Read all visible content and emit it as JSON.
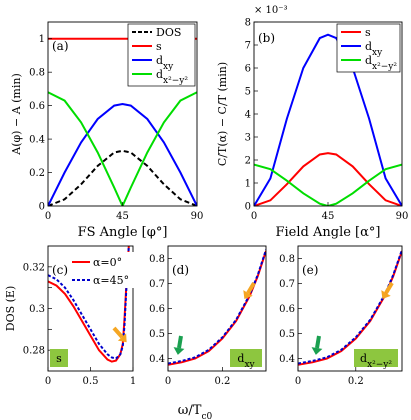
{
  "figure": {
    "panel_labels": [
      "(a)",
      "(b)",
      "(c)",
      "(d)",
      "(e)"
    ],
    "exponent_label": "× 10⁻³",
    "bottom_xlabel": "ω/T",
    "bottom_xlabel_sub": "c0"
  },
  "colors": {
    "s": "#ff0000",
    "dxy": "#0000ff",
    "dx2y2": "#00dd00",
    "dos": "#000000",
    "alpha0": "#ff0000",
    "alpha45": "#0000cc",
    "arrow_orange": "#f5a623",
    "arrow_green": "#1aa050",
    "box_fill": "#8dc63f"
  },
  "chart_data": [
    {
      "id": "a",
      "type": "line",
      "xlabel": "FS Angle [φ°]",
      "ylabel": "A(φ) − A (min)",
      "xlim": [
        0,
        90
      ],
      "ylim": [
        0,
        1.1
      ],
      "xticks": [
        0,
        45,
        90
      ],
      "yticks": [
        0,
        0.2,
        0.4,
        0.6,
        0.8,
        1
      ],
      "legend": [
        "DOS",
        "s",
        "d_xy",
        "d_x²−y²"
      ],
      "legend_position": "top-right",
      "series": [
        {
          "name": "DOS",
          "color": "#000000",
          "dashed": true,
          "x": [
            0,
            10,
            20,
            30,
            40,
            45,
            50,
            60,
            70,
            80,
            90
          ],
          "y": [
            0,
            0.04,
            0.13,
            0.24,
            0.32,
            0.33,
            0.32,
            0.24,
            0.13,
            0.04,
            0
          ]
        },
        {
          "name": "s",
          "color": "#ff0000",
          "x": [
            0,
            90
          ],
          "y": [
            1,
            1
          ]
        },
        {
          "name": "d_xy",
          "color": "#0000ff",
          "x": [
            0,
            10,
            20,
            30,
            40,
            45,
            50,
            60,
            70,
            80,
            90
          ],
          "y": [
            0,
            0.2,
            0.38,
            0.52,
            0.6,
            0.61,
            0.6,
            0.52,
            0.38,
            0.2,
            0
          ]
        },
        {
          "name": "d_x²−y²",
          "color": "#00dd00",
          "x": [
            0,
            10,
            20,
            30,
            40,
            45,
            50,
            60,
            70,
            80,
            90
          ],
          "y": [
            0.68,
            0.63,
            0.5,
            0.32,
            0.11,
            0,
            0.11,
            0.32,
            0.5,
            0.63,
            0.68
          ]
        }
      ]
    },
    {
      "id": "b",
      "type": "line",
      "xlabel": "Field Angle [α°]",
      "ylabel": "C/T(α) − C/T (min)",
      "xlim": [
        0,
        90
      ],
      "ylim": [
        0,
        8
      ],
      "xticks": [
        0,
        45,
        90
      ],
      "yticks": [
        0,
        1,
        2,
        3,
        4,
        5,
        6,
        7,
        8
      ],
      "legend": [
        "s",
        "d_xy",
        "d_x²−y²"
      ],
      "legend_position": "top-right",
      "series": [
        {
          "name": "s",
          "color": "#ff0000",
          "x": [
            0,
            10,
            20,
            30,
            40,
            45,
            50,
            60,
            70,
            80,
            90
          ],
          "y": [
            0,
            0.25,
            0.95,
            1.72,
            2.24,
            2.3,
            2.24,
            1.72,
            0.95,
            0.25,
            0
          ]
        },
        {
          "name": "d_xy",
          "color": "#0000ff",
          "x": [
            0,
            10,
            20,
            30,
            40,
            45,
            50,
            60,
            70,
            80,
            90
          ],
          "y": [
            0,
            1.2,
            3.8,
            6.0,
            7.3,
            7.45,
            7.3,
            6.0,
            3.8,
            1.2,
            0
          ]
        },
        {
          "name": "d_x²−y²",
          "color": "#00dd00",
          "x": [
            0,
            10,
            20,
            30,
            40,
            45,
            50,
            60,
            70,
            80,
            90
          ],
          "y": [
            1.8,
            1.6,
            1.1,
            0.55,
            0.1,
            0,
            0.1,
            0.55,
            1.1,
            1.6,
            1.8
          ]
        }
      ]
    },
    {
      "id": "c",
      "type": "line",
      "ylabel": "DOS (E)",
      "xlim": [
        0,
        1
      ],
      "ylim": [
        0.27,
        0.33
      ],
      "xticks": [
        0,
        0.5,
        1
      ],
      "yticks": [
        0.28,
        0.29,
        0.3,
        0.31,
        0.32
      ],
      "yticklabels": [
        "0.28",
        "",
        "0.3",
        "",
        "0.32"
      ],
      "legend": [
        "α=0°",
        "α=45°"
      ],
      "legend_position": "top-right",
      "box_label": "s",
      "series": [
        {
          "name": "α=0°",
          "color": "#ff0000",
          "x": [
            0,
            0.1,
            0.2,
            0.3,
            0.4,
            0.5,
            0.6,
            0.7,
            0.75,
            0.8,
            0.85,
            0.88,
            0.9,
            0.92,
            0.95
          ],
          "y": [
            0.313,
            0.311,
            0.307,
            0.301,
            0.294,
            0.287,
            0.28,
            0.2755,
            0.2745,
            0.275,
            0.278,
            0.283,
            0.295,
            0.31,
            0.33
          ]
        },
        {
          "name": "α=45°",
          "color": "#0000cc",
          "dashed": true,
          "x": [
            0,
            0.1,
            0.2,
            0.3,
            0.4,
            0.5,
            0.6,
            0.7,
            0.75,
            0.8,
            0.85,
            0.88,
            0.9,
            0.92,
            0.95
          ],
          "y": [
            0.316,
            0.314,
            0.31,
            0.304,
            0.297,
            0.29,
            0.283,
            0.278,
            0.2765,
            0.276,
            0.278,
            0.282,
            0.292,
            0.308,
            0.33
          ]
        }
      ]
    },
    {
      "id": "d",
      "type": "line",
      "xlim": [
        0,
        0.36
      ],
      "ylim": [
        0.35,
        0.85
      ],
      "xticks": [
        0,
        0.2
      ],
      "yticks": [
        0.4,
        0.5,
        0.6,
        0.7,
        0.8
      ],
      "box_label": "d_xy",
      "series": [
        {
          "name": "α=0°",
          "color": "#ff0000",
          "x": [
            0,
            0.05,
            0.1,
            0.15,
            0.2,
            0.25,
            0.3,
            0.33,
            0.36
          ],
          "y": [
            0.375,
            0.385,
            0.4,
            0.43,
            0.48,
            0.55,
            0.65,
            0.73,
            0.83
          ]
        },
        {
          "name": "α=45°",
          "color": "#0000cc",
          "dashed": true,
          "x": [
            0,
            0.05,
            0.1,
            0.15,
            0.2,
            0.25,
            0.3,
            0.33,
            0.36
          ],
          "y": [
            0.38,
            0.39,
            0.405,
            0.435,
            0.485,
            0.555,
            0.655,
            0.735,
            0.835
          ]
        }
      ]
    },
    {
      "id": "e",
      "type": "line",
      "xlim": [
        0,
        0.36
      ],
      "ylim": [
        0.35,
        0.85
      ],
      "xticks": [
        0,
        0.2
      ],
      "yticks": [
        0.4,
        0.5,
        0.6,
        0.7,
        0.8
      ],
      "box_label": "d_x²−y²",
      "series": [
        {
          "name": "α=0°",
          "color": "#ff0000",
          "x": [
            0,
            0.05,
            0.1,
            0.15,
            0.2,
            0.25,
            0.3,
            0.33,
            0.36
          ],
          "y": [
            0.375,
            0.385,
            0.4,
            0.43,
            0.48,
            0.55,
            0.65,
            0.73,
            0.83
          ]
        },
        {
          "name": "α=45°",
          "color": "#0000cc",
          "dashed": true,
          "x": [
            0,
            0.05,
            0.1,
            0.15,
            0.2,
            0.25,
            0.3,
            0.33,
            0.36
          ],
          "y": [
            0.38,
            0.39,
            0.405,
            0.435,
            0.485,
            0.555,
            0.655,
            0.735,
            0.835
          ]
        }
      ]
    }
  ]
}
